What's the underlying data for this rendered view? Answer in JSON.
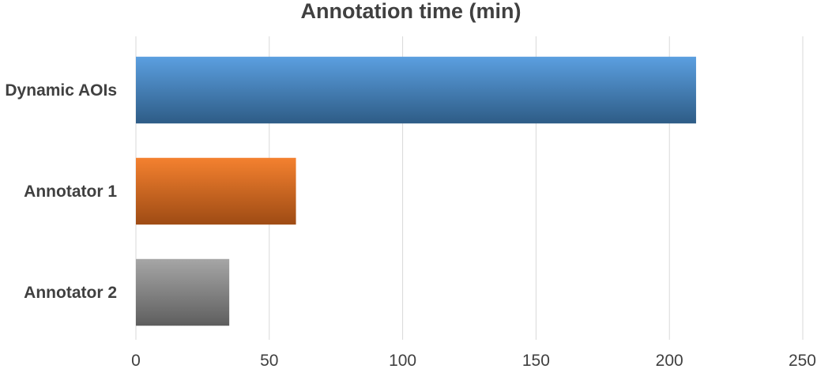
{
  "chart_data": {
    "type": "bar",
    "orientation": "horizontal",
    "title": "Annotation time (min)",
    "xlabel": "",
    "ylabel": "",
    "categories": [
      "Dynamic AOIs",
      "Annotator 1",
      "Annotator 2"
    ],
    "values": [
      210,
      60,
      35
    ],
    "xlim": [
      0,
      250
    ],
    "x_ticks": [
      0,
      50,
      100,
      150,
      200,
      250
    ],
    "grid": "vertical",
    "legend": "none",
    "colors": {
      "Dynamic AOIs": {
        "top": "#5B9FE0",
        "bottom": "#2E5C86"
      },
      "Annotator 1": {
        "top": "#F4812F",
        "bottom": "#9E4B14"
      },
      "Annotator 2": {
        "top": "#A6A6A6",
        "bottom": "#5E5E5E"
      },
      "gridline": "#D9D9D9",
      "text": "#404040"
    }
  }
}
